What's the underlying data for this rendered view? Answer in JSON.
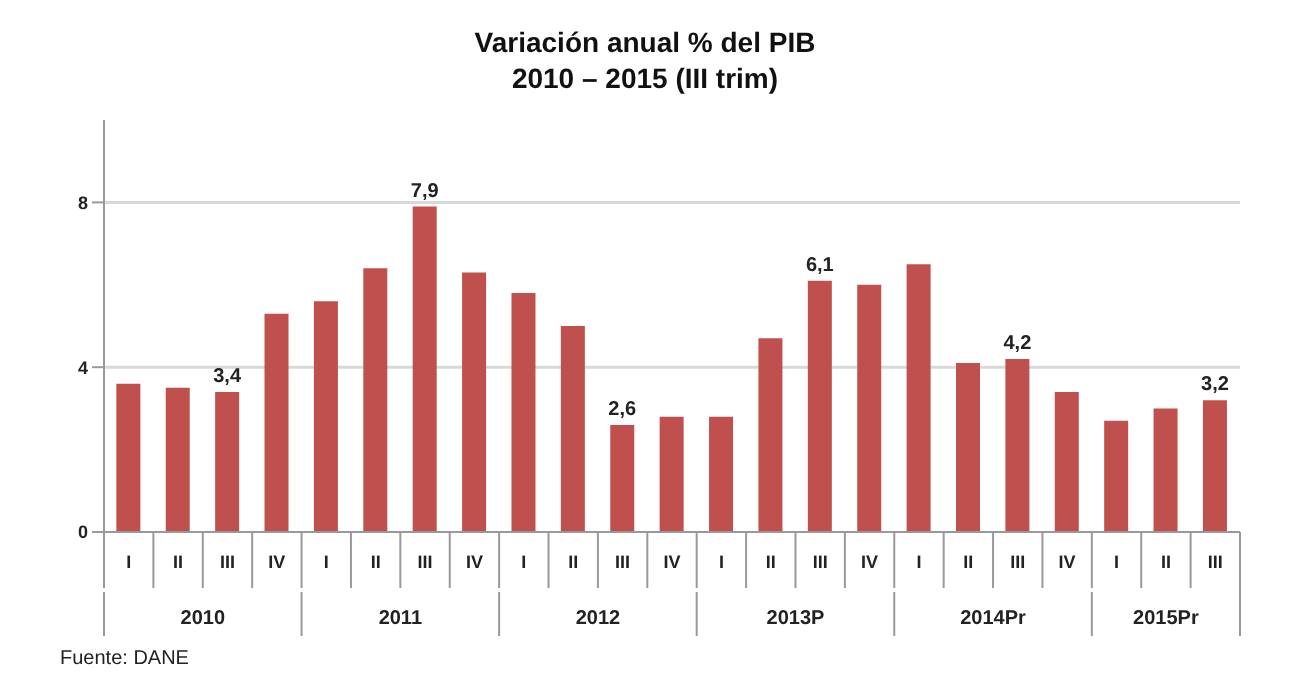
{
  "chart_data": {
    "type": "bar",
    "title": "Variación anual % del PIB",
    "subtitle": "2010 – 2015 (III trim)",
    "categories": [
      "I",
      "II",
      "III",
      "IV",
      "I",
      "II",
      "III",
      "IV",
      "I",
      "II",
      "III",
      "IV",
      "I",
      "II",
      "III",
      "IV",
      "I",
      "II",
      "III",
      "IV",
      "I",
      "II",
      "III"
    ],
    "values": [
      3.6,
      3.5,
      3.4,
      5.3,
      5.6,
      6.4,
      7.9,
      6.3,
      5.8,
      5.0,
      2.6,
      2.8,
      2.8,
      4.7,
      6.1,
      6.0,
      6.5,
      4.1,
      4.2,
      3.4,
      2.7,
      3.0,
      3.2
    ],
    "value_labels": [
      null,
      null,
      "3,4",
      null,
      null,
      null,
      "7,9",
      null,
      null,
      null,
      "2,6",
      null,
      null,
      null,
      "6,1",
      null,
      null,
      null,
      "4,2",
      null,
      null,
      null,
      "3,2"
    ],
    "color": "#c0504d",
    "ylim": [
      0,
      10
    ],
    "yticks": [
      0,
      4,
      8
    ],
    "grid": "y",
    "annotations": [
      "2010",
      "2011",
      "2012",
      "2013P",
      "2014Pr",
      "2015Pr",
      "Fuente: DANE"
    ]
  }
}
